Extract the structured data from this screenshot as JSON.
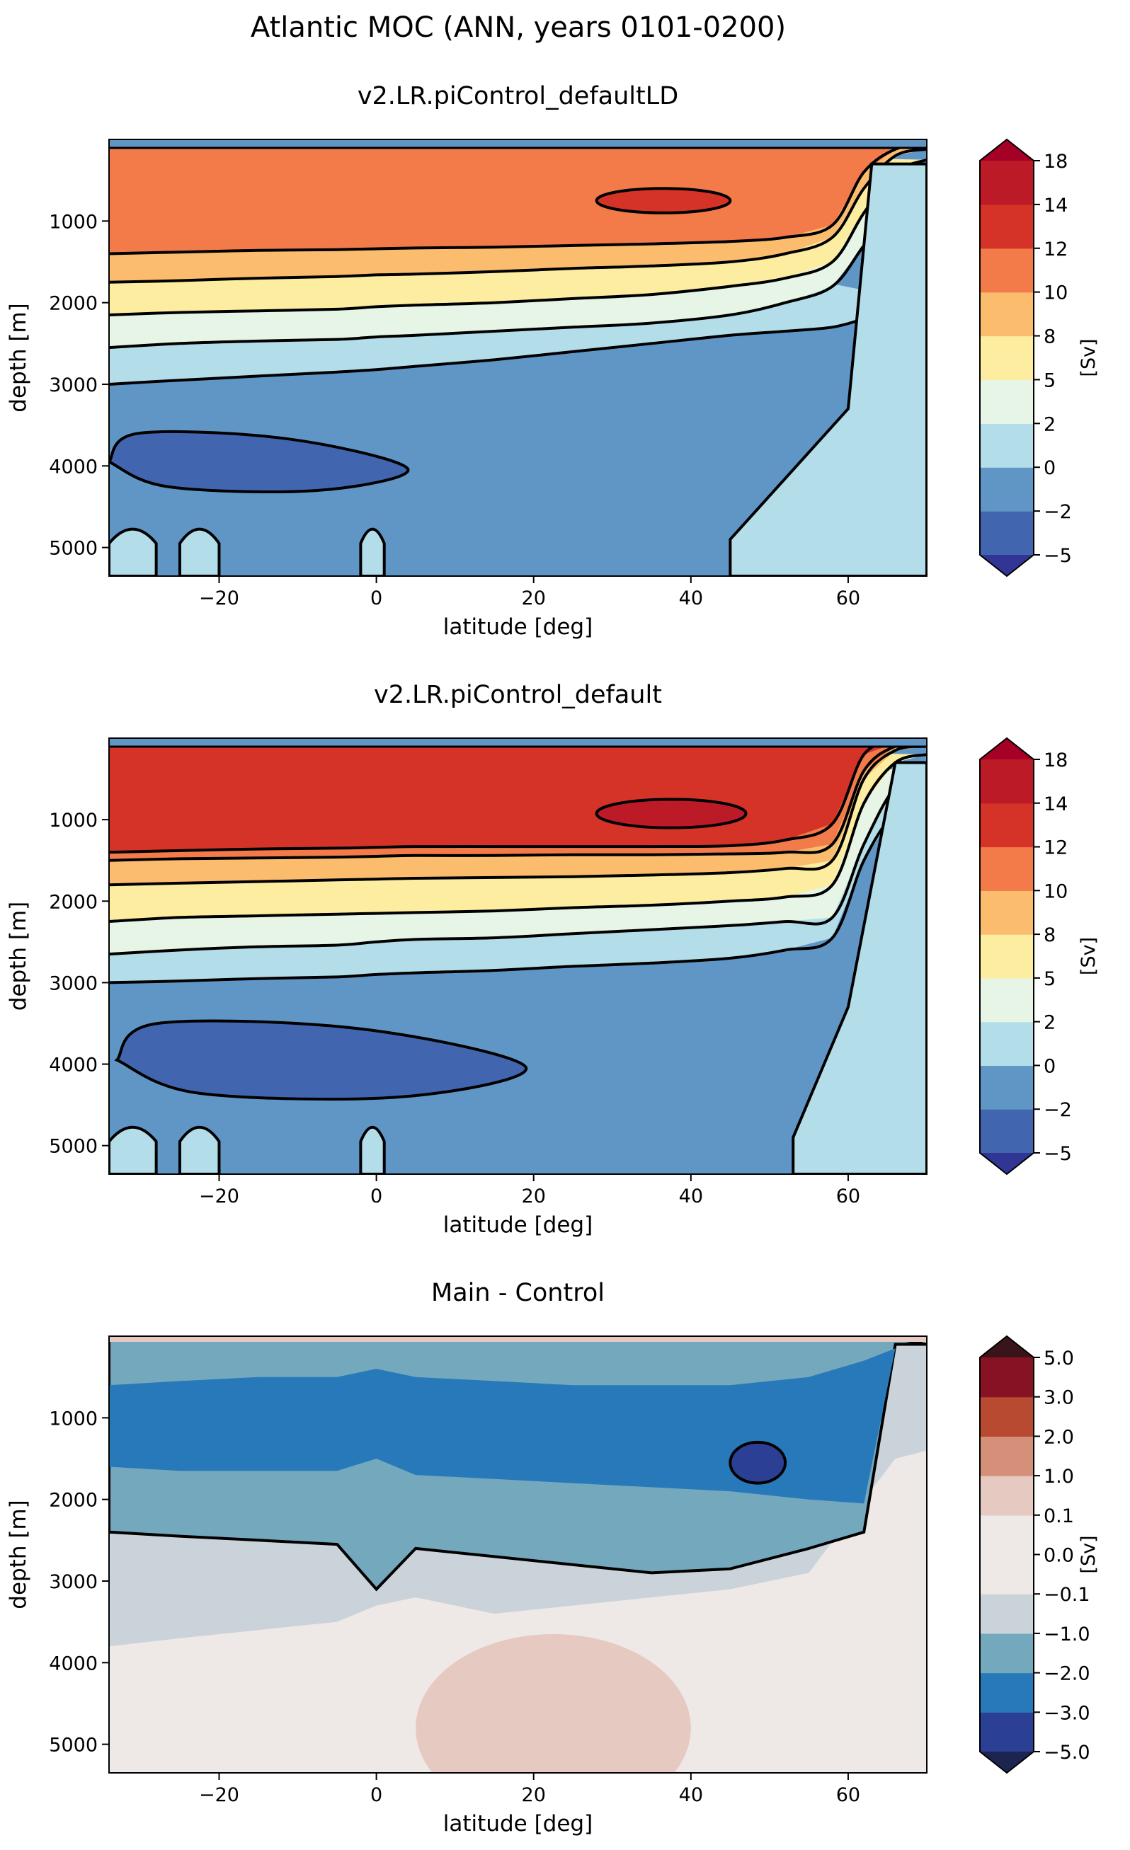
{
  "suptitle": "Atlantic MOC (ANN, years 0101-0200)",
  "chart_data": [
    {
      "type": "heatmap",
      "title": "v2.LR.piControl_defaultLD",
      "xlabel": "latitude [deg]",
      "ylabel": "depth [m]",
      "xlim": [
        -34,
        70
      ],
      "ylim": [
        5350,
        0
      ],
      "xticks": [
        "−20",
        "0",
        "20",
        "40",
        "60"
      ],
      "yticks": [
        "1000",
        "2000",
        "3000",
        "4000",
        "5000"
      ],
      "colorbar": {
        "label": "[Sv]",
        "extend": "both",
        "levels": [
          -8,
          -5,
          -2,
          0,
          2,
          5,
          8,
          10,
          12,
          14,
          18
        ],
        "tick_labels": [
          "−5",
          "−2",
          "0",
          "2",
          "5",
          "8",
          "10",
          "12",
          "14",
          "18"
        ],
        "colors": [
          "#313695",
          "#4165ae",
          "#6096c6",
          "#b3dde9",
          "#e6f5e6",
          "#fdeda0",
          "#fbbc6e",
          "#f37b4a",
          "#d63328",
          "#bd1a27",
          "#a50026"
        ]
      },
      "features": [
        {
          "kind": "upper_cell",
          "value_sv": 10,
          "note": "orange core 500-1500 m from 34S to 58N"
        },
        {
          "kind": "upper_cell_max",
          "value_sv": 12,
          "lat": [
            28,
            45
          ],
          "depth_m": [
            600,
            900
          ]
        },
        {
          "kind": "bottom_cell",
          "value_sv": -5,
          "lat": [
            -34,
            4
          ],
          "depth_m": [
            3600,
            4300
          ]
        }
      ]
    },
    {
      "type": "heatmap",
      "title": "v2.LR.piControl_default",
      "xlabel": "latitude [deg]",
      "ylabel": "depth [m]",
      "xlim": [
        -34,
        70
      ],
      "ylim": [
        5350,
        0
      ],
      "xticks": [
        "−20",
        "0",
        "20",
        "40",
        "60"
      ],
      "yticks": [
        "1000",
        "2000",
        "3000",
        "4000",
        "5000"
      ],
      "colorbar": {
        "label": "[Sv]",
        "extend": "both",
        "levels": [
          -8,
          -5,
          -2,
          0,
          2,
          5,
          8,
          10,
          12,
          14,
          18
        ],
        "tick_labels": [
          "−5",
          "−2",
          "0",
          "2",
          "5",
          "8",
          "10",
          "12",
          "14",
          "18"
        ],
        "colors": [
          "#313695",
          "#4165ae",
          "#6096c6",
          "#b3dde9",
          "#e6f5e6",
          "#fdeda0",
          "#fbbc6e",
          "#f37b4a",
          "#d63328",
          "#bd1a27",
          "#a50026"
        ]
      },
      "features": [
        {
          "kind": "upper_cell",
          "value_sv": 12,
          "note": "red-orange core 400-1500 m from 34S to 58N"
        },
        {
          "kind": "upper_cell_max",
          "value_sv": 14,
          "lat": [
            28,
            47
          ],
          "depth_m": [
            750,
            1100
          ]
        },
        {
          "kind": "bottom_cell",
          "value_sv": -5,
          "lat": [
            -33,
            19
          ],
          "depth_m": [
            3500,
            4400
          ]
        }
      ]
    },
    {
      "type": "heatmap",
      "title": "Main - Control",
      "xlabel": "latitude [deg]",
      "ylabel": "depth [m]",
      "xlim": [
        -34,
        70
      ],
      "ylim": [
        5350,
        0
      ],
      "xticks": [
        "−20",
        "0",
        "20",
        "40",
        "60"
      ],
      "yticks": [
        "1000",
        "2000",
        "3000",
        "4000",
        "5000"
      ],
      "colorbar": {
        "label": "[Sv]",
        "extend": "both",
        "levels": [
          -8,
          -5,
          -3,
          -2,
          -1,
          -0.1,
          0,
          0.1,
          1,
          2,
          3,
          5
        ],
        "tick_labels": [
          "−5.0",
          "−3.0",
          "−2.0",
          "−1.0",
          "−0.1",
          "0.0",
          "0.1",
          "1.0",
          "2.0",
          "3.0",
          "5.0"
        ],
        "colors": [
          "#1c2550",
          "#2b3f95",
          "#2879b9",
          "#73a8bd",
          "#c9d3d9",
          "#eee8e6",
          "#eee8e6",
          "#e6c9c1",
          "#d6907a",
          "#b84a31",
          "#861224",
          "#391418"
        ]
      },
      "features": [
        {
          "kind": "difference_min",
          "value_sv": -3,
          "lat": [
            -34,
            65
          ],
          "depth_m": [
            600,
            2200
          ]
        },
        {
          "kind": "difference_min",
          "value_sv": -5,
          "lat": [
            45,
            52
          ],
          "depth_m": [
            1300,
            1800
          ]
        },
        {
          "kind": "difference_pos",
          "value_sv": 0.1,
          "lat": [
            5,
            40
          ],
          "depth_m": [
            4000,
            5350
          ]
        }
      ]
    }
  ]
}
